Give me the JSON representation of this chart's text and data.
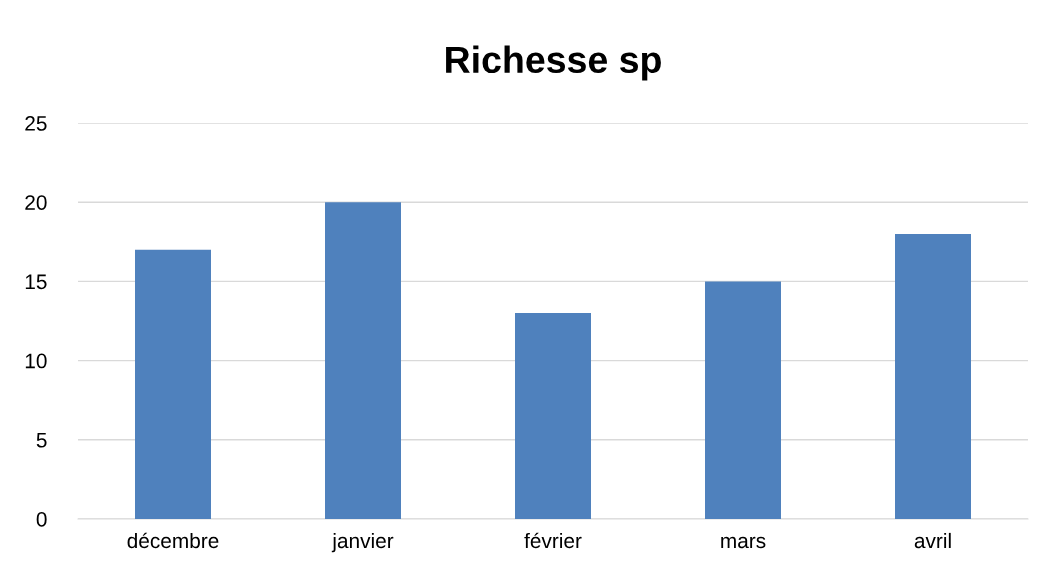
{
  "chart_data": {
    "type": "bar",
    "title": "Richesse sp",
    "categories": [
      "décembre",
      "janvier",
      "février",
      "mars",
      "avril"
    ],
    "values": [
      17,
      20,
      13,
      15,
      18
    ],
    "color": "#4f81bd",
    "ylim": [
      0,
      25
    ],
    "yticks": [
      0,
      5,
      10,
      15,
      20,
      25
    ],
    "grid": "y",
    "legend": false
  }
}
